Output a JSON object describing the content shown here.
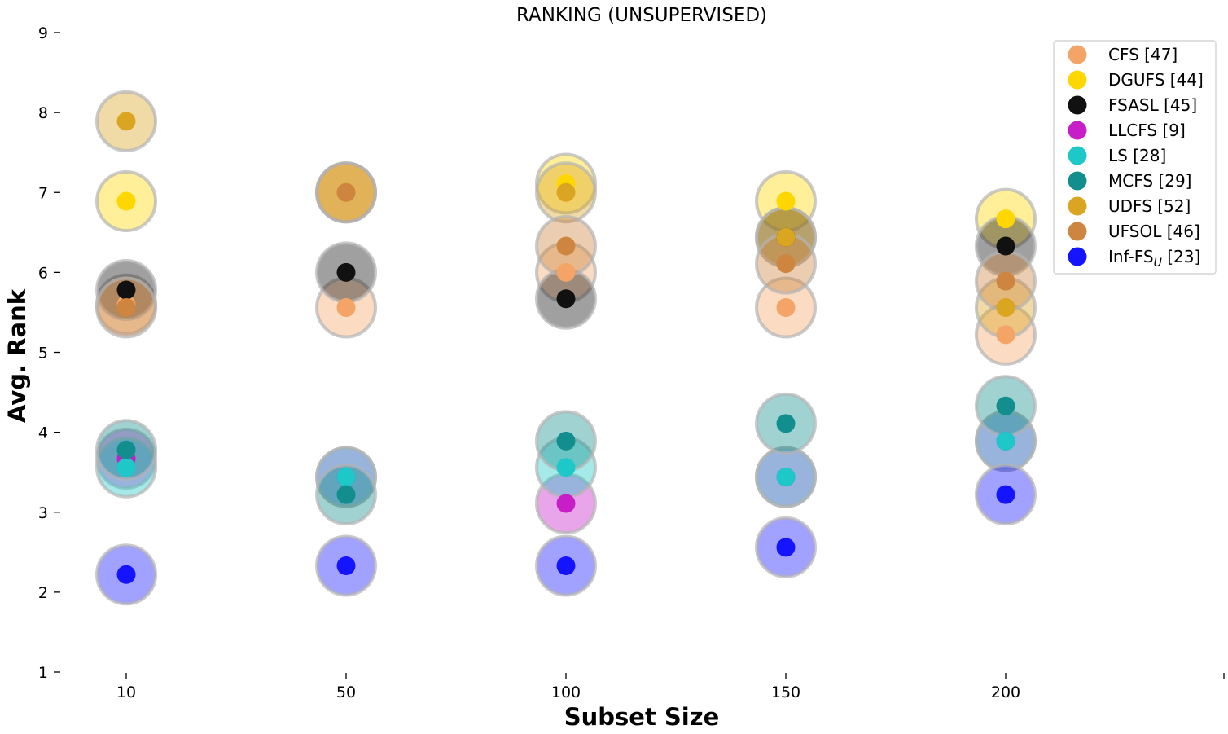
{
  "chart_data": {
    "type": "scatter",
    "title": "RANKING (UNSUPERVISED)",
    "xlabel": "Subset Size",
    "ylabel": "Avg. Rank",
    "categories": [
      "10",
      "50",
      "100",
      "150",
      "200"
    ],
    "yticks": [
      "1",
      "2",
      "3",
      "4",
      "5",
      "6",
      "7",
      "8",
      "9"
    ],
    "ylim": [
      1,
      9
    ],
    "grid": false,
    "legend_position": "top-right",
    "series": [
      {
        "name": "CFS [47]",
        "color": "#f4a466",
        "values": [
          5.6,
          5.56,
          6.0,
          5.56,
          5.22
        ]
      },
      {
        "name": "DGUFS [44]",
        "color": "#ffd700",
        "values": [
          6.89,
          7.0,
          7.11,
          6.89,
          6.67
        ]
      },
      {
        "name": "FSASL [45]",
        "color": "#111111",
        "values": [
          5.78,
          6.0,
          5.67,
          6.44,
          6.33
        ]
      },
      {
        "name": "LLCFS [9]",
        "color": "#c71ec7",
        "values": [
          3.67,
          3.44,
          3.11,
          3.44,
          3.89
        ]
      },
      {
        "name": "LS [28]",
        "color": "#1ec8c8",
        "values": [
          3.56,
          3.44,
          3.56,
          3.44,
          3.89
        ]
      },
      {
        "name": "MCFS [29]",
        "color": "#138e8e",
        "values": [
          3.78,
          3.22,
          3.89,
          4.11,
          4.33
        ]
      },
      {
        "name": "UDFS [52]",
        "color": "#daa520",
        "values": [
          7.89,
          7.0,
          7.0,
          6.44,
          5.56
        ]
      },
      {
        "name": "UFSOL [46]",
        "color": "#cd853f",
        "values": [
          5.56,
          7.0,
          6.33,
          6.11,
          5.89
        ]
      },
      {
        "name": "Inf-FS",
        "name_sub": "U",
        "name_suffix": " [23]",
        "color": "#1414ff",
        "values": [
          2.22,
          2.33,
          2.33,
          2.56,
          3.22
        ]
      }
    ]
  }
}
